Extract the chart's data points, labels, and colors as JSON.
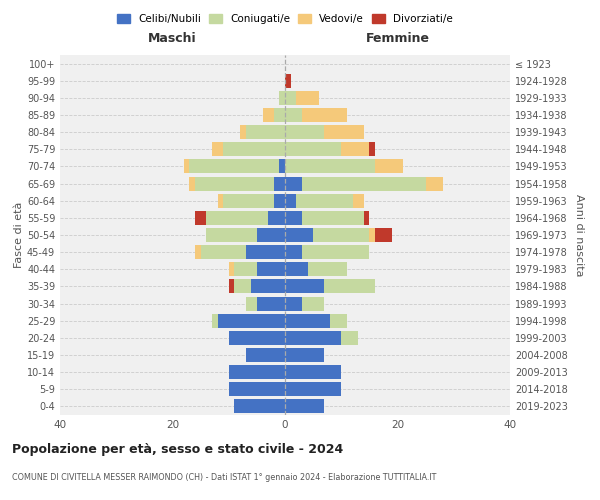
{
  "age_groups": [
    "0-4",
    "5-9",
    "10-14",
    "15-19",
    "20-24",
    "25-29",
    "30-34",
    "35-39",
    "40-44",
    "45-49",
    "50-54",
    "55-59",
    "60-64",
    "65-69",
    "70-74",
    "75-79",
    "80-84",
    "85-89",
    "90-94",
    "95-99",
    "100+"
  ],
  "birth_years": [
    "2019-2023",
    "2014-2018",
    "2009-2013",
    "2004-2008",
    "1999-2003",
    "1994-1998",
    "1989-1993",
    "1984-1988",
    "1979-1983",
    "1974-1978",
    "1969-1973",
    "1964-1968",
    "1959-1963",
    "1954-1958",
    "1949-1953",
    "1944-1948",
    "1939-1943",
    "1934-1938",
    "1929-1933",
    "1924-1928",
    "≤ 1923"
  ],
  "male": {
    "celibi": [
      9,
      10,
      10,
      7,
      10,
      12,
      5,
      6,
      5,
      7,
      5,
      3,
      2,
      2,
      1,
      0,
      0,
      0,
      0,
      0,
      0
    ],
    "coniugati": [
      0,
      0,
      0,
      0,
      0,
      1,
      2,
      3,
      4,
      8,
      9,
      11,
      9,
      14,
      16,
      11,
      7,
      2,
      1,
      0,
      0
    ],
    "vedovi": [
      0,
      0,
      0,
      0,
      0,
      0,
      0,
      0,
      1,
      1,
      0,
      0,
      1,
      1,
      1,
      2,
      1,
      2,
      0,
      0,
      0
    ],
    "divorziati": [
      0,
      0,
      0,
      0,
      0,
      0,
      0,
      1,
      0,
      0,
      0,
      2,
      0,
      0,
      0,
      0,
      0,
      0,
      0,
      0,
      0
    ]
  },
  "female": {
    "nubili": [
      7,
      10,
      10,
      7,
      10,
      8,
      3,
      7,
      4,
      3,
      5,
      3,
      2,
      3,
      0,
      0,
      0,
      0,
      0,
      0,
      0
    ],
    "coniugate": [
      0,
      0,
      0,
      0,
      3,
      3,
      4,
      9,
      7,
      12,
      10,
      11,
      10,
      22,
      16,
      10,
      7,
      3,
      2,
      0,
      0
    ],
    "vedove": [
      0,
      0,
      0,
      0,
      0,
      0,
      0,
      0,
      0,
      0,
      1,
      0,
      2,
      3,
      5,
      5,
      7,
      8,
      4,
      0,
      0
    ],
    "divorziate": [
      0,
      0,
      0,
      0,
      0,
      0,
      0,
      0,
      0,
      0,
      3,
      1,
      0,
      0,
      0,
      1,
      0,
      0,
      0,
      1,
      0
    ]
  },
  "colors": {
    "celibi": "#4472c4",
    "coniugati": "#c5d9a0",
    "vedovi": "#f5c97a",
    "divorziati": "#c0392b"
  },
  "title": "Popolazione per età, sesso e stato civile - 2024",
  "subtitle": "COMUNE DI CIVITELLA MESSER RAIMONDO (CH) - Dati ISTAT 1° gennaio 2024 - Elaborazione TUTTITALIA.IT",
  "xlabel_left": "Maschi",
  "xlabel_right": "Femmine",
  "ylabel_left": "Fasce di età",
  "ylabel_right": "Anni di nascita",
  "xlim": 40,
  "bg_color": "#ffffff",
  "plot_bg_color": "#f0f0f0",
  "grid_color": "#cccccc"
}
